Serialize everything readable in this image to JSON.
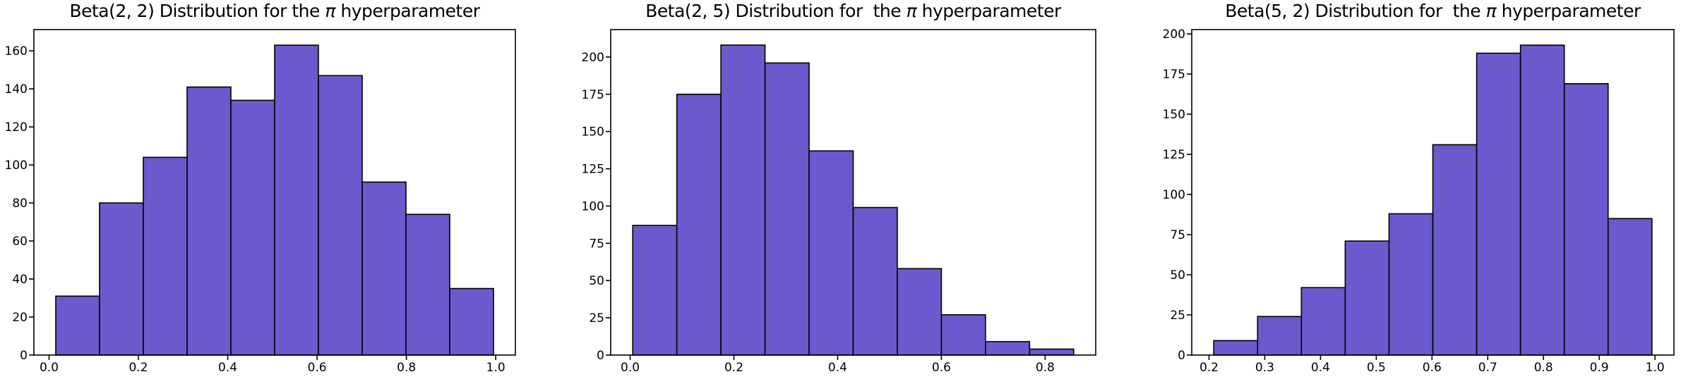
{
  "style": {
    "bar_fill": "#6A5ACD",
    "bar_edge": "#000000",
    "axis_color": "#000000",
    "text_color": "#000000",
    "background": "#FFFFFF"
  },
  "chart_data": [
    {
      "type": "bar",
      "subtype": "histogram",
      "title": "Beta(2, 2) Distribution for the π hyperparameter",
      "title_parts": {
        "prefix": "Beta(2, 2) Distribution for the ",
        "pi": "π",
        "suffix": " hyperparameter"
      },
      "values": [
        31,
        80,
        104,
        141,
        134,
        163,
        147,
        91,
        74,
        35
      ],
      "bin_start": 0.015,
      "bin_width": 0.098,
      "xlabel": "",
      "ylabel": "",
      "xticks": {
        "values": [
          0.0,
          0.2,
          0.4,
          0.6,
          0.8,
          1.0
        ],
        "labels": [
          "0.0",
          "0.2",
          "0.4",
          "0.6",
          "0.8",
          "1.0"
        ]
      },
      "yticks": {
        "values": [
          0,
          20,
          40,
          60,
          80,
          100,
          120,
          140,
          160
        ],
        "labels": [
          "0",
          "20",
          "40",
          "60",
          "80",
          "100",
          "120",
          "140",
          "160"
        ]
      },
      "xlim": [
        -0.034,
        1.044
      ],
      "ylim": [
        0,
        171.2
      ],
      "grid": false,
      "legend": null
    },
    {
      "type": "bar",
      "subtype": "histogram",
      "title": "Beta(2, 5) Distribution for  the π hyperparameter",
      "title_parts": {
        "prefix": "Beta(2, 5) Distribution for  the ",
        "pi": "π",
        "suffix": " hyperparameter"
      },
      "values": [
        87,
        175,
        208,
        196,
        137,
        99,
        58,
        27,
        9,
        4
      ],
      "bin_start": 0.005,
      "bin_width": 0.085,
      "xlabel": "",
      "ylabel": "",
      "xticks": {
        "values": [
          0.0,
          0.2,
          0.4,
          0.6,
          0.8
        ],
        "labels": [
          "0.0",
          "0.2",
          "0.4",
          "0.6",
          "0.8"
        ]
      },
      "yticks": {
        "values": [
          0,
          25,
          50,
          75,
          100,
          125,
          150,
          175,
          200
        ],
        "labels": [
          "0",
          "25",
          "50",
          "75",
          "100",
          "125",
          "150",
          "175",
          "200"
        ]
      },
      "xlim": [
        -0.0375,
        0.8975
      ],
      "ylim": [
        0,
        218.4
      ],
      "grid": false,
      "legend": null
    },
    {
      "type": "bar",
      "subtype": "histogram",
      "title": "Beta(5, 2) Distribution for  the π hyperparameter",
      "title_parts": {
        "prefix": "Beta(5, 2) Distribution for  the ",
        "pi": "π",
        "suffix": " hyperparameter"
      },
      "values": [
        9,
        24,
        42,
        71,
        88,
        131,
        188,
        193,
        169,
        85
      ],
      "bin_start": 0.2085,
      "bin_width": 0.0786,
      "xlabel": "",
      "ylabel": "",
      "xticks": {
        "values": [
          0.2,
          0.3,
          0.4,
          0.5,
          0.6,
          0.7,
          0.8,
          0.9,
          1.0
        ],
        "labels": [
          "0.2",
          "0.3",
          "0.4",
          "0.5",
          "0.6",
          "0.7",
          "0.8",
          "0.9",
          "1.0"
        ]
      },
      "yticks": {
        "values": [
          0,
          25,
          50,
          75,
          100,
          125,
          150,
          175,
          200
        ],
        "labels": [
          "0",
          "25",
          "50",
          "75",
          "100",
          "125",
          "150",
          "175",
          "200"
        ]
      },
      "xlim": [
        0.169,
        1.034
      ],
      "ylim": [
        0,
        202.7
      ],
      "grid": false,
      "legend": null
    }
  ]
}
